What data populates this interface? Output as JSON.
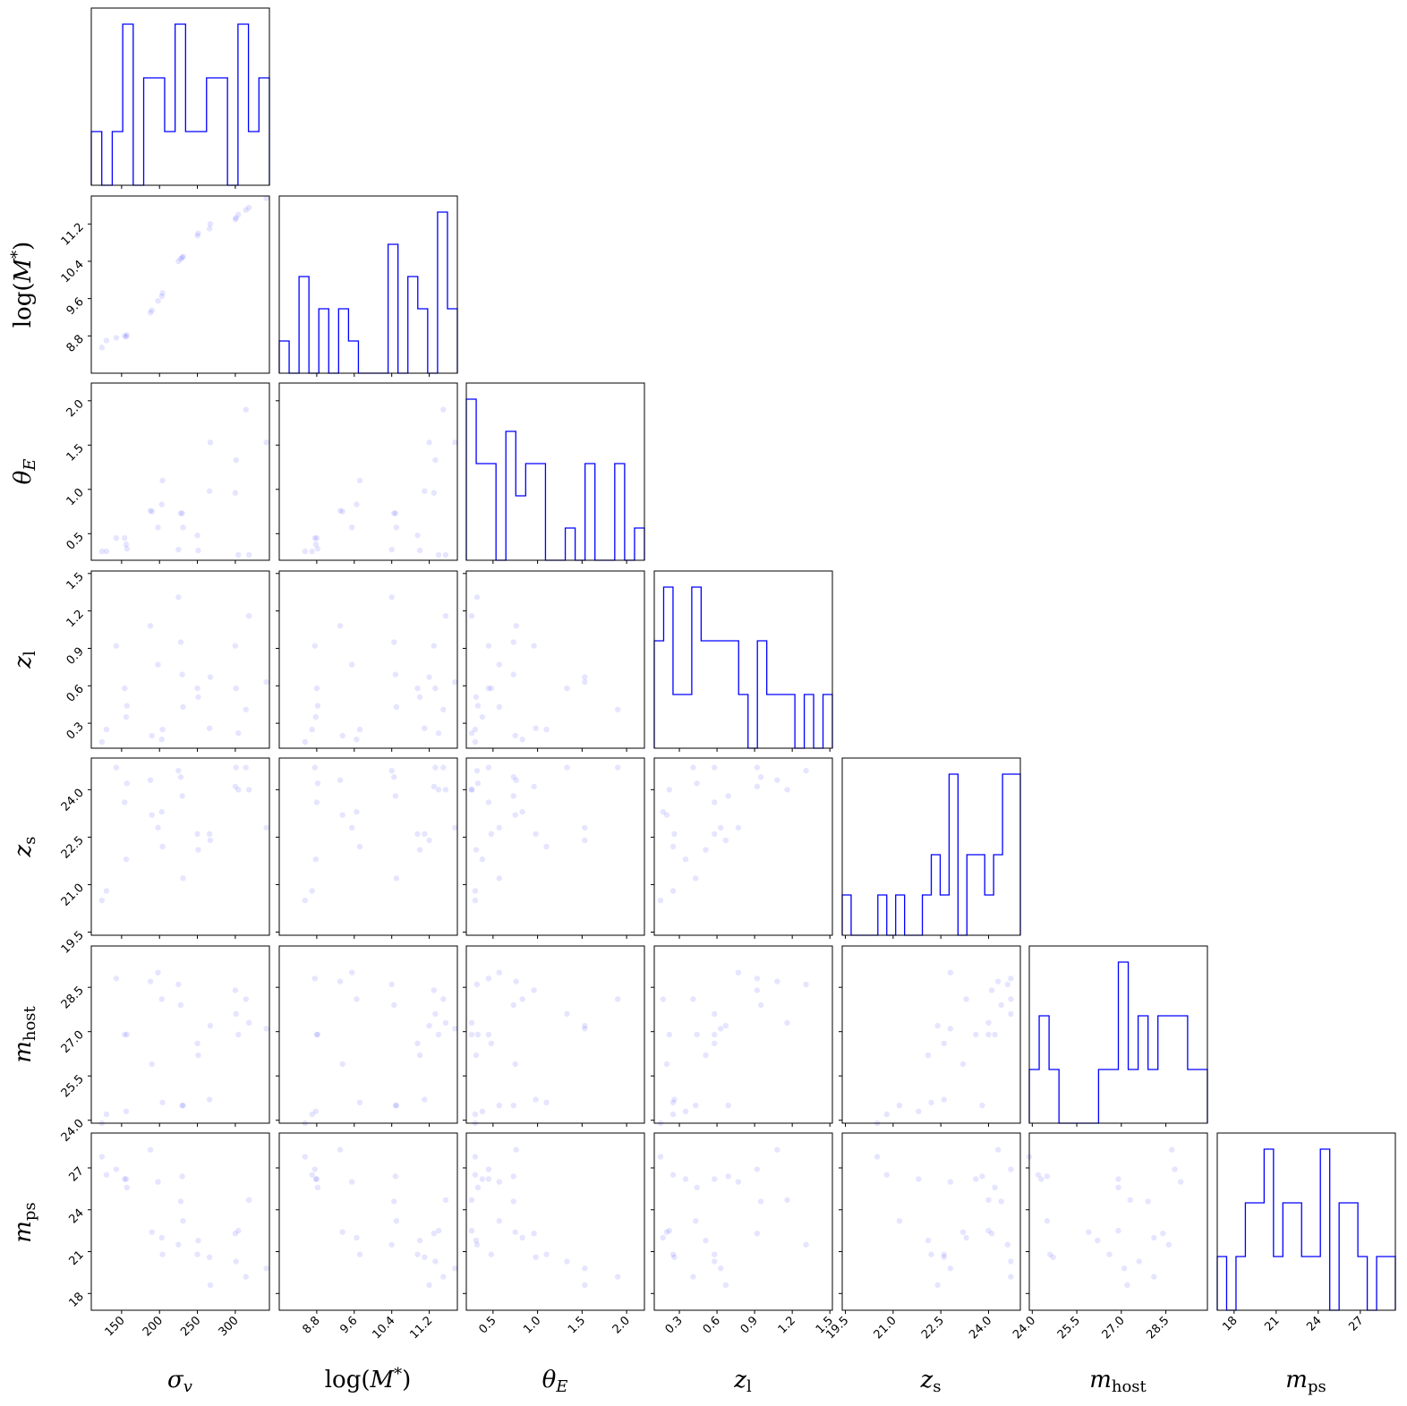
{
  "chart_data": {
    "type": "corner",
    "colors": {
      "hist": "#0000ff",
      "points": "#0000ff",
      "frame": "#000000"
    },
    "point_opacity": 0.1,
    "variables": [
      {
        "key": "sigma_v",
        "label": "σv",
        "range": [
          110,
          345
        ],
        "ticks": [
          150,
          200,
          250,
          300
        ],
        "tick_labels": [
          "150",
          "200",
          "250",
          "300"
        ]
      },
      {
        "key": "logM",
        "label": "log(M*)",
        "range": [
          8.0,
          11.8
        ],
        "ticks": [
          8.8,
          9.6,
          10.4,
          11.2
        ],
        "tick_labels": [
          "8.8",
          "9.6",
          "10.4",
          "11.2"
        ]
      },
      {
        "key": "theta_E",
        "label": "θE",
        "range": [
          0.2,
          2.2
        ],
        "ticks": [
          0.5,
          1.0,
          1.5,
          2.0
        ],
        "tick_labels": [
          "0.5",
          "1.0",
          "1.5",
          "2.0"
        ]
      },
      {
        "key": "z_l",
        "label": "zl",
        "range": [
          0.1,
          1.52
        ],
        "ticks": [
          0.3,
          0.6,
          0.9,
          1.2,
          1.5
        ],
        "tick_labels": [
          "0.3",
          "0.6",
          "0.9",
          "1.2",
          "1.5"
        ]
      },
      {
        "key": "z_s",
        "label": "zs",
        "range": [
          19.4,
          25.0
        ],
        "ticks": [
          19.5,
          21.0,
          22.5,
          24.0
        ],
        "tick_labels": [
          "19.5",
          "21.0",
          "22.5",
          "24.0"
        ]
      },
      {
        "key": "m_host",
        "label": "mhost",
        "range": [
          23.9,
          29.9
        ],
        "ticks": [
          24.0,
          25.5,
          27.0,
          28.5
        ],
        "tick_labels": [
          "24.0",
          "25.5",
          "27.0",
          "28.5"
        ]
      },
      {
        "key": "m_ps",
        "label": "mps",
        "range": [
          16.8,
          29.5
        ],
        "ticks": [
          18,
          21,
          24,
          27
        ],
        "tick_labels": [
          "18",
          "21",
          "24",
          "27"
        ]
      }
    ],
    "histogram_counts": {
      "sigma_v": [
        1,
        0,
        1,
        3,
        0,
        2,
        2,
        1,
        3,
        1,
        1,
        2,
        2,
        0,
        3,
        1,
        2
      ],
      "logM": [
        1,
        0,
        3,
        0,
        2,
        0,
        2,
        1,
        0,
        0,
        0,
        4,
        0,
        3,
        2,
        0,
        5,
        2
      ],
      "theta_E": [
        5,
        3,
        3,
        0,
        4,
        2,
        3,
        3,
        0,
        0,
        1,
        0,
        3,
        0,
        0,
        3,
        0,
        1
      ],
      "z_l": [
        2,
        3,
        1,
        1,
        3,
        2,
        2,
        2,
        2,
        1,
        0,
        2,
        1,
        1,
        1,
        0,
        1,
        0,
        1
      ],
      "z_s": [
        1,
        0,
        0,
        0,
        1,
        0,
        1,
        0,
        0,
        1,
        2,
        1,
        4,
        0,
        2,
        2,
        1,
        2,
        4,
        4
      ],
      "m_host": [
        1,
        2,
        1,
        0,
        0,
        0,
        0,
        1,
        1,
        3,
        1,
        2,
        1,
        2,
        2,
        2,
        1,
        1
      ],
      "m_ps": [
        1,
        0,
        1,
        2,
        2,
        3,
        1,
        2,
        2,
        1,
        1,
        3,
        0,
        2,
        2,
        1,
        0,
        1,
        1
      ]
    },
    "samples": [
      [
        124,
        8.55,
        0.3,
        0.15,
        20.5,
        23.9,
        27.8
      ],
      [
        130,
        8.7,
        0.3,
        0.25,
        20.8,
        24.2,
        26.5
      ],
      [
        143,
        8.76,
        0.45,
        0.92,
        24.7,
        28.8,
        26.9
      ],
      [
        156,
        8.78,
        0.38,
        0.35,
        21.8,
        24.3,
        26.2
      ],
      [
        154,
        8.8,
        0.45,
        0.58,
        23.6,
        26.9,
        26.2
      ],
      [
        157,
        8.82,
        0.33,
        0.44,
        24.2,
        26.9,
        25.6
      ],
      [
        188,
        9.3,
        0.76,
        1.08,
        24.3,
        28.7,
        28.3
      ],
      [
        190,
        9.35,
        0.75,
        0.2,
        23.2,
        25.9,
        22.4
      ],
      [
        198,
        9.55,
        0.57,
        0.77,
        22.8,
        29.0,
        26.0
      ],
      [
        204,
        9.72,
        1.1,
        0.25,
        22.2,
        24.6,
        20.8
      ],
      [
        203,
        9.65,
        0.83,
        0.17,
        23.3,
        28.1,
        22.0
      ],
      [
        228,
        10.45,
        0.73,
        0.95,
        24.4,
        27.9,
        24.6
      ],
      [
        230,
        10.48,
        0.73,
        0.69,
        23.8,
        24.5,
        26.4
      ],
      [
        231,
        10.5,
        0.57,
        0.43,
        21.2,
        24.5,
        23.2
      ],
      [
        225,
        10.4,
        0.32,
        1.31,
        24.6,
        28.6,
        21.5
      ],
      [
        250,
        10.95,
        0.48,
        0.58,
        22.6,
        26.6,
        20.8
      ],
      [
        251,
        11.0,
        0.31,
        0.51,
        22.1,
        26.2,
        21.8
      ],
      [
        266,
        11.1,
        0.98,
        0.26,
        22.6,
        24.7,
        20.6
      ],
      [
        267,
        11.2,
        1.53,
        0.67,
        22.4,
        27.2,
        18.6
      ],
      [
        300,
        11.3,
        0.96,
        0.92,
        24.1,
        28.4,
        22.3
      ],
      [
        301,
        11.33,
        1.33,
        0.58,
        24.7,
        27.6,
        20.3
      ],
      [
        304,
        11.4,
        0.26,
        0.22,
        24.0,
        26.9,
        22.5
      ],
      [
        314,
        11.5,
        1.9,
        0.41,
        24.7,
        28.1,
        19.2
      ],
      [
        318,
        11.55,
        0.26,
        1.16,
        24.0,
        27.3,
        24.7
      ],
      [
        341,
        11.75,
        1.53,
        0.63,
        22.8,
        27.1,
        19.8
      ]
    ]
  }
}
